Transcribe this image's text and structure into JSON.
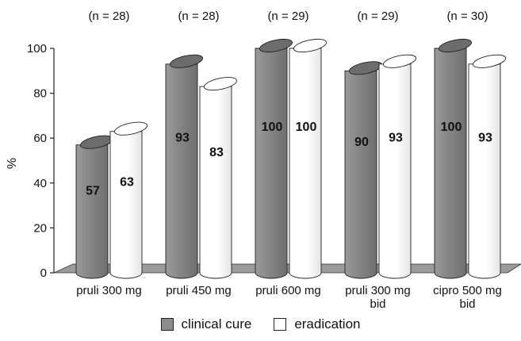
{
  "chart_data": {
    "type": "bar",
    "title": "",
    "xlabel": "",
    "ylabel": "%",
    "ylim": [
      0,
      100
    ],
    "yticks": [
      0,
      20,
      40,
      60,
      80,
      100
    ],
    "categories": [
      [
        "pruli 300 mg"
      ],
      [
        "pruli 450 mg"
      ],
      [
        "pruli 600 mg"
      ],
      [
        "pruli 300 mg",
        "bid"
      ],
      [
        "cipro 500 mg",
        "bid"
      ]
    ],
    "group_counts": [
      "(n = 28)",
      "(n = 28)",
      "(n = 29)",
      "(n = 29)",
      "(n = 30)"
    ],
    "series": [
      {
        "name": "clinical cure",
        "values": [
          57,
          93,
          100,
          90,
          100
        ],
        "color": "#8c8c8c"
      },
      {
        "name": "eradication",
        "values": [
          63,
          83,
          100,
          93,
          93
        ],
        "color": "#ffffff"
      }
    ],
    "style": "3d-cylinder",
    "grid": false,
    "legend_position": "bottom"
  }
}
